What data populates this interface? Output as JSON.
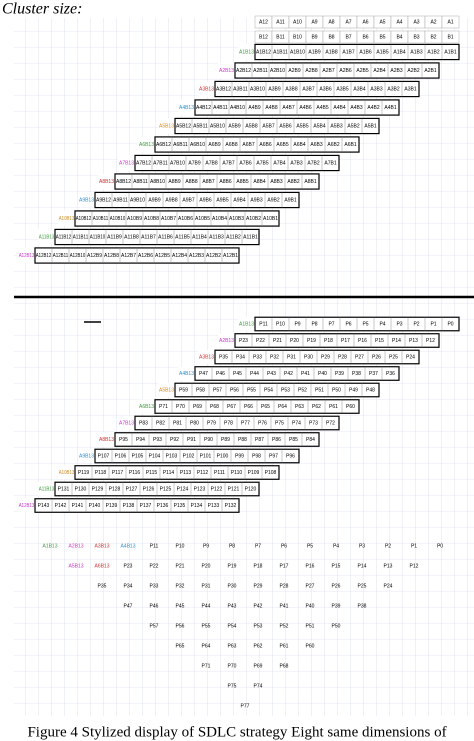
{
  "title": "Cluster size:",
  "caption": "Figure 4 Stylized display of SDLC strategy Eight same dimensions of",
  "lead_colors": [
    "#3b9a3b",
    "#cc33cc",
    "#d03030",
    "#2f8fcf",
    "#d08a20"
  ],
  "panels": [
    {
      "header_rows": [
        [
          "A12",
          "A11",
          "A10",
          "A9",
          "A8",
          "A7",
          "A6",
          "A5",
          "A4",
          "A3",
          "A2",
          "A1"
        ],
        [
          "B12",
          "B11",
          "B10",
          "B9",
          "B8",
          "B7",
          "B6",
          "B5",
          "B4",
          "B3",
          "B2",
          "B1"
        ]
      ],
      "rows": [
        {
          "lead": [
            "A1B13"
          ],
          "cells": [
            "A1B12",
            "A1B11",
            "A1B10",
            "A1B9",
            "A1B8",
            "A1B7",
            "A1B6",
            "A1B5",
            "A1B4",
            "A1B3",
            "A1B2",
            "A1B1"
          ]
        },
        {
          "lead": [
            "A2B13"
          ],
          "cells": [
            "A2B12",
            "A2B11",
            "A2B10",
            "A2B9",
            "A2B8",
            "A2B7",
            "A2B6",
            "A2B5",
            "A2B4",
            "A2B3",
            "A2B2",
            "A2B1"
          ]
        },
        {
          "lead": [
            "A3B13"
          ],
          "cells": [
            "A3B12",
            "A3B11",
            "A3B10",
            "A3B9",
            "A3B8",
            "A3B7",
            "A3B6",
            "A3B5",
            "A3B4",
            "A3B3",
            "A3B2",
            "A3B1"
          ]
        },
        {
          "lead": [
            "A4B13"
          ],
          "cells": [
            "A4B12",
            "A4B11",
            "A4B10",
            "A4B9",
            "A4B8",
            "A4B7",
            "A4B6",
            "A4B5",
            "A4B4",
            "A4B3",
            "A4B2",
            "A4B1"
          ]
        },
        {
          "lead": [
            "A5B13"
          ],
          "cells": [
            "A5B12",
            "A5B11",
            "A5B10",
            "A5B9",
            "A5B8",
            "A5B7",
            "A5B6",
            "A5B5",
            "A5B4",
            "A5B3",
            "A5B2",
            "A5B1"
          ]
        },
        {
          "lead": [
            "A6B13"
          ],
          "cells": [
            "A6B12",
            "A6B11",
            "A6B10",
            "A6B9",
            "A6B8",
            "A6B7",
            "A6B6",
            "A6B5",
            "A6B4",
            "A6B3",
            "A6B2",
            "A6B1"
          ]
        },
        {
          "lead": [
            "A7B13"
          ],
          "cells": [
            "A7B12",
            "A7B11",
            "A7B10",
            "A7B9",
            "A7B8",
            "A7B7",
            "A7B6",
            "A7B5",
            "A7B4",
            "A7B3",
            "A7B2",
            "A7B1"
          ]
        },
        {
          "lead": [
            "A8B13"
          ],
          "cells": [
            "A8B12",
            "A8B11",
            "A8B10",
            "A8B9",
            "A8B8",
            "A8B7",
            "A8B6",
            "A8B5",
            "A8B4",
            "A8B3",
            "A8B2",
            "A8B1"
          ]
        },
        {
          "lead": [
            "A9B13"
          ],
          "cells": [
            "A9B12",
            "A9B11",
            "A9B10",
            "A9B9",
            "A9B8",
            "A9B7",
            "A9B6",
            "A9B5",
            "A9B4",
            "A9B3",
            "A9B2",
            "A9B1"
          ]
        },
        {
          "lead": [
            "A10B13"
          ],
          "cells": [
            "A10B12",
            "A10B11",
            "A10B10",
            "A10B9",
            "A10B8",
            "A10B7",
            "A10B6",
            "A10B5",
            "A10B4",
            "A10B3",
            "A10B2",
            "A10B1"
          ]
        },
        {
          "lead": [
            "A11B13"
          ],
          "cells": [
            "A11B12",
            "A11B11",
            "A11B10",
            "A11B9",
            "A11B8",
            "A11B7",
            "A11B6",
            "A11B5",
            "A11B4",
            "A11B3",
            "A11B2",
            "A11B1"
          ]
        },
        {
          "lead": [
            "A12B13"
          ],
          "cells": [
            "A12B12",
            "A12B11",
            "A12B10",
            "A12B9",
            "A12B8",
            "A12B7",
            "A12B6",
            "A12B5",
            "A12B4",
            "A12B3",
            "A12B2",
            "A12B1"
          ]
        }
      ]
    },
    {
      "header_rows": [],
      "rows": [
        {
          "lead": [
            "A1B13"
          ],
          "cells": [
            "P11",
            "P10",
            "P9",
            "P8",
            "P7",
            "P6",
            "P5",
            "P4",
            "P3",
            "P2",
            "P1",
            "P0"
          ]
        },
        {
          "lead": [
            "A2B13"
          ],
          "cells": [
            "P23",
            "P22",
            "P21",
            "P20",
            "P19",
            "P18",
            "P17",
            "P16",
            "P15",
            "P14",
            "P13",
            "P12"
          ]
        },
        {
          "lead": [
            "A3B13"
          ],
          "cells": [
            "P35",
            "P34",
            "P33",
            "P32",
            "P31",
            "P30",
            "P29",
            "P28",
            "P27",
            "P26",
            "P25",
            "P24"
          ]
        },
        {
          "lead": [
            "A4B13"
          ],
          "cells": [
            "P47",
            "P46",
            "P45",
            "P44",
            "P43",
            "P42",
            "P41",
            "P40",
            "P39",
            "P38",
            "P37",
            "P36"
          ]
        },
        {
          "lead": [
            "A5B13"
          ],
          "cells": [
            "P59",
            "P58",
            "P57",
            "P56",
            "P55",
            "P54",
            "P53",
            "P52",
            "P51",
            "P50",
            "P49",
            "P48"
          ]
        },
        {
          "lead": [
            "A6B13"
          ],
          "cells": [
            "P71",
            "P70",
            "P69",
            "P68",
            "P67",
            "P66",
            "P65",
            "P64",
            "P63",
            "P62",
            "P61",
            "P60"
          ]
        },
        {
          "lead": [
            "A7B13"
          ],
          "cells": [
            "P83",
            "P82",
            "P81",
            "P80",
            "P79",
            "P78",
            "P77",
            "P76",
            "P75",
            "P74",
            "P73",
            "P72"
          ]
        },
        {
          "lead": [
            "A8B13"
          ],
          "cells": [
            "P95",
            "P94",
            "P93",
            "P92",
            "P91",
            "P90",
            "P89",
            "P88",
            "P87",
            "P86",
            "P85",
            "P84"
          ]
        },
        {
          "lead": [
            "A9B13"
          ],
          "cells": [
            "P107",
            "P106",
            "P105",
            "P104",
            "P103",
            "P102",
            "P101",
            "P100",
            "P99",
            "P98",
            "P97",
            "P96"
          ]
        },
        {
          "lead": [
            "A10B13"
          ],
          "cells": [
            "P119",
            "P118",
            "P117",
            "P116",
            "P115",
            "P114",
            "P113",
            "P112",
            "P111",
            "P110",
            "P109",
            "P108"
          ]
        },
        {
          "lead": [
            "A11B13"
          ],
          "cells": [
            "P131",
            "P130",
            "P129",
            "P128",
            "P127",
            "P126",
            "P125",
            "P124",
            "P123",
            "P122",
            "P121",
            "P120"
          ]
        },
        {
          "lead": [
            "A12B13"
          ],
          "cells": [
            "P143",
            "P142",
            "P141",
            "P140",
            "P139",
            "P138",
            "P137",
            "P136",
            "P135",
            "P134",
            "P133",
            "P132"
          ]
        }
      ]
    },
    {
      "header_rows": [],
      "rows": [
        {
          "lead": [
            "A1B13",
            "A2B13",
            "A3B13",
            "A4B13"
          ],
          "cells": [
            "P11",
            "P10",
            "P9",
            "P8",
            "P7",
            "P6",
            "P5",
            "P4",
            "P3",
            "P2",
            "P1",
            "P0"
          ]
        },
        {
          "lead": [
            "A5B13",
            "A6B13"
          ],
          "cells": [
            "P23",
            "P22",
            "P21",
            "P20",
            "P19",
            "P18",
            "P17",
            "P16",
            "P15",
            "P14",
            "P13",
            "P12"
          ]
        },
        {
          "lead": [],
          "cells": [
            "P35",
            "P34",
            "P33",
            "P32",
            "P31",
            "P30",
            "P29",
            "P28",
            "P27",
            "P26",
            "P25",
            "P24"
          ]
        },
        {
          "lead": [],
          "cells": [
            "P47",
            "P46",
            "P45",
            "P44",
            "P43",
            "P42",
            "P41",
            "P40",
            "P39",
            "P38"
          ]
        },
        {
          "lead": [],
          "cells": [
            "P57",
            "P56",
            "P55",
            "P54",
            "P53",
            "P52",
            "P51",
            "P50"
          ]
        },
        {
          "lead": [],
          "cells": [
            "P65",
            "P64",
            "P63",
            "P62",
            "P61",
            "P60"
          ]
        },
        {
          "lead": [],
          "cells": [
            "P71",
            "P70",
            "P69",
            "P68"
          ]
        },
        {
          "lead": [],
          "cells": [
            "P75",
            "P74"
          ]
        },
        {
          "lead": [],
          "cells": [
            "P77"
          ]
        }
      ]
    }
  ]
}
